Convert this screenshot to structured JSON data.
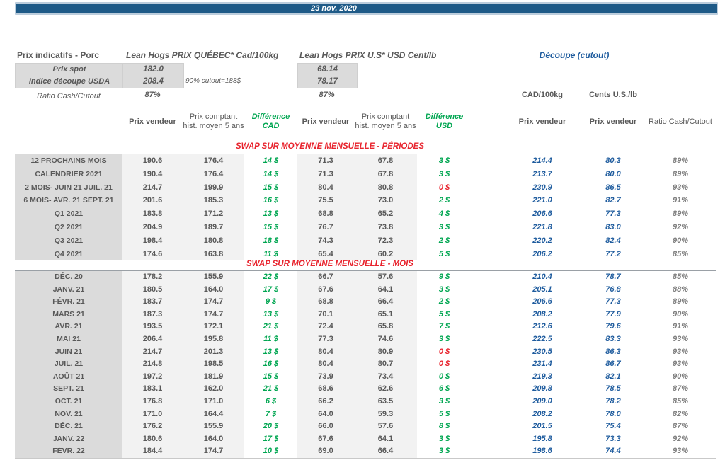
{
  "colors": {
    "bar_blue": "#1E5A87",
    "accent_blue": "#1F5C9E",
    "positive_green": "#00A651",
    "negative_red": "#E8232D",
    "text_gray": "#595959",
    "label_bg": "#DBDBDB",
    "cell_bg": "#F2F2F2"
  },
  "title_bar": {
    "date": "23 nov. 2020"
  },
  "header": {
    "left_title": "Prix indicatifs - Porc",
    "quebec_title": "Lean Hogs PRIX QUÉBEC* Cad/100kg",
    "us_title": "Lean Hogs PRIX U.S* USD Cent/lb",
    "cutout_title": "Découpe (cutout)",
    "spot_label": "Prix spot",
    "spot_cad": "182.0",
    "spot_usd": "68.14",
    "indice_label": "Indice découpe USDA",
    "indice_cad": "208.4",
    "indice_usd": "78.17",
    "cutout_note": "90% cutout=188$",
    "ratio_label": "Ratio Cash/Cutout",
    "ratio_cad": "87%",
    "ratio_usd": "87%",
    "unit_cad": "CAD/100kg",
    "unit_us": "Cents U.S./lb"
  },
  "columns": {
    "prix_vendeur": "Prix vendeur",
    "prix_comptant": "Prix comptant hist. moyen 5 ans",
    "diff_cad": "Différence CAD",
    "diff_usd": "Différence USD",
    "ratio": "Ratio Cash/Cutout"
  },
  "sections": [
    {
      "heading": "SWAP SUR MOYENNE MENSUELLE - PÉRIODES",
      "rows": [
        {
          "label": "12 PROCHAINS MOIS",
          "cad_v": "190.6",
          "cad_h": "176.4",
          "cad_d": "14 $",
          "usd_v": "71.3",
          "usd_h": "67.8",
          "usd_d": "3 $",
          "cad100": "214.4",
          "cents": "80.3",
          "ratio": "89%"
        },
        {
          "label": "CALENDRIER 2021",
          "cad_v": "190.4",
          "cad_h": "176.4",
          "cad_d": "14 $",
          "usd_v": "71.3",
          "usd_h": "67.8",
          "usd_d": "3 $",
          "cad100": "213.7",
          "cents": "80.0",
          "ratio": "89%"
        },
        {
          "label": "2 MOIS- JUIN 21 JUIL. 21",
          "cad_v": "214.7",
          "cad_h": "199.9",
          "cad_d": "15 $",
          "usd_v": "80.4",
          "usd_h": "80.8",
          "usd_d": "0 $",
          "usd_red": true,
          "cad100": "230.9",
          "cents": "86.5",
          "ratio": "93%"
        },
        {
          "label": "6 MOIS- AVR. 21 SEPT. 21",
          "cad_v": "201.6",
          "cad_h": "185.3",
          "cad_d": "16 $",
          "usd_v": "75.5",
          "usd_h": "73.0",
          "usd_d": "2 $",
          "cad100": "221.0",
          "cents": "82.7",
          "ratio": "91%"
        },
        {
          "label": "Q1 2021",
          "cad_v": "183.8",
          "cad_h": "171.2",
          "cad_d": "13 $",
          "usd_v": "68.8",
          "usd_h": "65.2",
          "usd_d": "4 $",
          "cad100": "206.6",
          "cents": "77.3",
          "ratio": "89%"
        },
        {
          "label": "Q2 2021",
          "cad_v": "204.9",
          "cad_h": "189.7",
          "cad_d": "15 $",
          "usd_v": "76.7",
          "usd_h": "73.8",
          "usd_d": "3 $",
          "cad100": "221.8",
          "cents": "83.0",
          "ratio": "92%"
        },
        {
          "label": "Q3 2021",
          "cad_v": "198.4",
          "cad_h": "180.8",
          "cad_d": "18 $",
          "usd_v": "74.3",
          "usd_h": "72.3",
          "usd_d": "2 $",
          "cad100": "220.2",
          "cents": "82.4",
          "ratio": "90%"
        },
        {
          "label": "Q4 2021",
          "cad_v": "174.6",
          "cad_h": "163.8",
          "cad_d": "11 $",
          "usd_v": "65.4",
          "usd_h": "60.2",
          "usd_d": "5 $",
          "cad100": "206.2",
          "cents": "77.2",
          "ratio": "85%"
        }
      ]
    },
    {
      "heading": "SWAP SUR MOYENNE MENSUELLE - MOIS",
      "rows": [
        {
          "label": "DÉC. 20",
          "cad_v": "178.2",
          "cad_h": "155.9",
          "cad_d": "22 $",
          "usd_v": "66.7",
          "usd_h": "57.6",
          "usd_d": "9 $",
          "cad100": "210.4",
          "cents": "78.7",
          "ratio": "85%"
        },
        {
          "label": "JANV. 21",
          "cad_v": "180.5",
          "cad_h": "164.0",
          "cad_d": "17 $",
          "usd_v": "67.6",
          "usd_h": "64.1",
          "usd_d": "3 $",
          "cad100": "205.1",
          "cents": "76.8",
          "ratio": "88%"
        },
        {
          "label": "FÉVR. 21",
          "cad_v": "183.7",
          "cad_h": "174.7",
          "cad_d": "9 $",
          "usd_v": "68.8",
          "usd_h": "66.4",
          "usd_d": "2 $",
          "cad100": "206.6",
          "cents": "77.3",
          "ratio": "89%"
        },
        {
          "label": "MARS 21",
          "cad_v": "187.3",
          "cad_h": "174.7",
          "cad_d": "13 $",
          "usd_v": "70.1",
          "usd_h": "65.1",
          "usd_d": "5 $",
          "cad100": "208.2",
          "cents": "77.9",
          "ratio": "90%"
        },
        {
          "label": "AVR. 21",
          "cad_v": "193.5",
          "cad_h": "172.1",
          "cad_d": "21 $",
          "usd_v": "72.4",
          "usd_h": "65.8",
          "usd_d": "7 $",
          "cad100": "212.6",
          "cents": "79.6",
          "ratio": "91%"
        },
        {
          "label": "MAI 21",
          "cad_v": "206.4",
          "cad_h": "195.8",
          "cad_d": "11 $",
          "usd_v": "77.3",
          "usd_h": "74.6",
          "usd_d": "3 $",
          "cad100": "222.5",
          "cents": "83.3",
          "ratio": "93%"
        },
        {
          "label": "JUIN 21",
          "cad_v": "214.7",
          "cad_h": "201.3",
          "cad_d": "13 $",
          "usd_v": "80.4",
          "usd_h": "80.9",
          "usd_d": "0 $",
          "usd_red": true,
          "cad100": "230.5",
          "cents": "86.3",
          "ratio": "93%"
        },
        {
          "label": "JUIL. 21",
          "cad_v": "214.8",
          "cad_h": "198.5",
          "cad_d": "16 $",
          "usd_v": "80.4",
          "usd_h": "80.7",
          "usd_d": "0 $",
          "usd_red": true,
          "cad100": "231.4",
          "cents": "86.7",
          "ratio": "93%"
        },
        {
          "label": "AOÛT 21",
          "cad_v": "197.2",
          "cad_h": "181.9",
          "cad_d": "15 $",
          "usd_v": "73.9",
          "usd_h": "73.4",
          "usd_d": "0 $",
          "cad100": "219.3",
          "cents": "82.1",
          "ratio": "90%"
        },
        {
          "label": "SEPT. 21",
          "cad_v": "183.1",
          "cad_h": "162.0",
          "cad_d": "21 $",
          "usd_v": "68.6",
          "usd_h": "62.6",
          "usd_d": "6 $",
          "cad100": "209.8",
          "cents": "78.5",
          "ratio": "87%"
        },
        {
          "label": "OCT. 21",
          "cad_v": "176.8",
          "cad_h": "171.0",
          "cad_d": "6 $",
          "usd_v": "66.2",
          "usd_h": "63.5",
          "usd_d": "3 $",
          "cad100": "209.0",
          "cents": "78.2",
          "ratio": "85%"
        },
        {
          "label": "NOV. 21",
          "cad_v": "171.0",
          "cad_h": "164.4",
          "cad_d": "7 $",
          "usd_v": "64.0",
          "usd_h": "59.3",
          "usd_d": "5 $",
          "cad100": "208.2",
          "cents": "78.0",
          "ratio": "82%"
        },
        {
          "label": "DÉC. 21",
          "cad_v": "176.2",
          "cad_h": "155.9",
          "cad_d": "20 $",
          "usd_v": "66.0",
          "usd_h": "57.6",
          "usd_d": "8 $",
          "cad100": "201.5",
          "cents": "75.4",
          "ratio": "87%"
        },
        {
          "label": "JANV. 22",
          "cad_v": "180.6",
          "cad_h": "164.0",
          "cad_d": "17 $",
          "usd_v": "67.6",
          "usd_h": "64.1",
          "usd_d": "3 $",
          "cad100": "195.8",
          "cents": "73.3",
          "ratio": "92%"
        },
        {
          "label": "FÉVR. 22",
          "cad_v": "184.4",
          "cad_h": "174.7",
          "cad_d": "10 $",
          "usd_v": "69.0",
          "usd_h": "66.4",
          "usd_d": "3 $",
          "cad100": "198.6",
          "cents": "74.4",
          "ratio": "93%"
        }
      ]
    }
  ]
}
